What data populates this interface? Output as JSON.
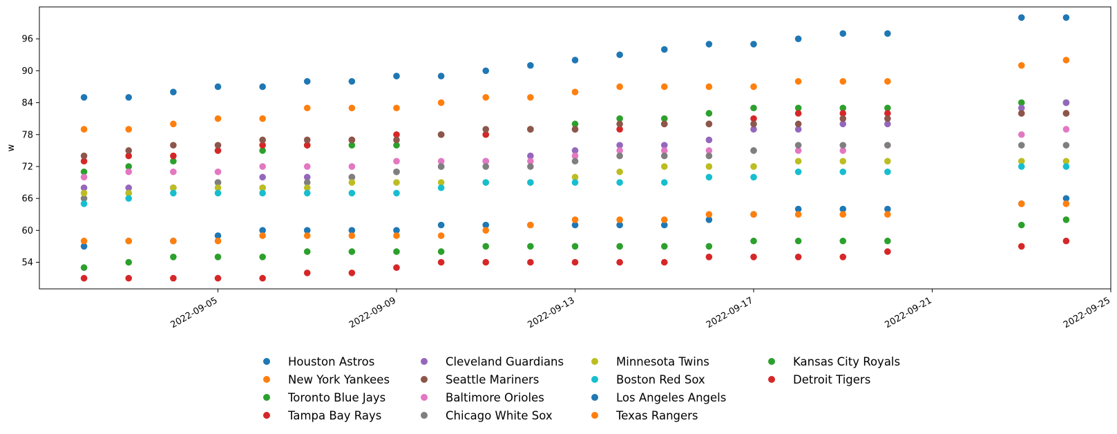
{
  "chart_data": {
    "type": "scatter",
    "title": "",
    "xlabel": "",
    "ylabel": "w",
    "x_axis_type": "date",
    "xlim": [
      "2022-09-01",
      "2022-09-25"
    ],
    "ylim": [
      49,
      102
    ],
    "x_ticks": [
      "2022-09-05",
      "2022-09-09",
      "2022-09-13",
      "2022-09-17",
      "2022-09-21",
      "2022-09-25"
    ],
    "y_ticks": [
      54,
      60,
      66,
      72,
      78,
      84,
      90,
      96
    ],
    "grid": false,
    "legend_position": "bottom-center",
    "legend_columns": 4,
    "x": [
      "2022-09-02",
      "2022-09-03",
      "2022-09-04",
      "2022-09-05",
      "2022-09-06",
      "2022-09-07",
      "2022-09-08",
      "2022-09-09",
      "2022-09-10",
      "2022-09-11",
      "2022-09-12",
      "2022-09-13",
      "2022-09-14",
      "2022-09-15",
      "2022-09-16",
      "2022-09-17",
      "2022-09-18",
      "2022-09-19",
      "2022-09-20",
      "2022-09-23",
      "2022-09-24"
    ],
    "series": [
      {
        "name": "Houston Astros",
        "color": "#1f77b4",
        "values": [
          85,
          85,
          86,
          87,
          87,
          88,
          88,
          89,
          89,
          90,
          91,
          92,
          93,
          94,
          95,
          95,
          96,
          97,
          97,
          100,
          100
        ]
      },
      {
        "name": "New York Yankees",
        "color": "#ff7f0e",
        "values": [
          79,
          79,
          80,
          81,
          81,
          83,
          83,
          83,
          84,
          85,
          85,
          86,
          87,
          87,
          87,
          87,
          88,
          88,
          88,
          91,
          92
        ]
      },
      {
        "name": "Toronto Blue Jays",
        "color": "#2ca02c",
        "values": [
          71,
          72,
          73,
          75,
          75,
          76,
          76,
          76,
          78,
          78,
          79,
          80,
          81,
          81,
          82,
          83,
          83,
          83,
          83,
          84,
          84
        ]
      },
      {
        "name": "Tampa Bay Rays",
        "color": "#d62728",
        "values": [
          73,
          74,
          74,
          75,
          76,
          76,
          77,
          78,
          78,
          78,
          79,
          79,
          79,
          80,
          80,
          81,
          82,
          82,
          82,
          82,
          82
        ]
      },
      {
        "name": "Cleveland Guardians",
        "color": "#9467bd",
        "values": [
          68,
          68,
          68,
          69,
          70,
          70,
          70,
          71,
          72,
          73,
          74,
          75,
          76,
          76,
          77,
          79,
          79,
          80,
          80,
          83,
          84
        ]
      },
      {
        "name": "Seattle Mariners",
        "color": "#8c564b",
        "values": [
          74,
          75,
          76,
          76,
          77,
          77,
          77,
          77,
          78,
          79,
          79,
          79,
          80,
          80,
          80,
          80,
          80,
          81,
          81,
          82,
          82
        ]
      },
      {
        "name": "Baltimore Orioles",
        "color": "#e377c2",
        "values": [
          70,
          71,
          71,
          71,
          72,
          72,
          72,
          73,
          73,
          73,
          73,
          74,
          75,
          75,
          75,
          75,
          75,
          75,
          76,
          78,
          79
        ]
      },
      {
        "name": "Chicago White Sox",
        "color": "#7f7f7f",
        "values": [
          66,
          67,
          68,
          69,
          68,
          69,
          70,
          71,
          72,
          72,
          72,
          73,
          74,
          74,
          74,
          75,
          76,
          76,
          76,
          76,
          76
        ]
      },
      {
        "name": "Minnesota Twins",
        "color": "#bcbd22",
        "values": [
          67,
          67,
          68,
          68,
          68,
          68,
          69,
          69,
          69,
          69,
          69,
          70,
          71,
          72,
          72,
          72,
          73,
          73,
          73,
          73,
          73
        ]
      },
      {
        "name": "Boston Red Sox",
        "color": "#17becf",
        "values": [
          65,
          66,
          67,
          67,
          67,
          67,
          67,
          67,
          68,
          69,
          69,
          69,
          69,
          69,
          70,
          70,
          71,
          71,
          71,
          72,
          72
        ]
      },
      {
        "name": "Los Angeles Angels",
        "color": "#1f77b4",
        "values": [
          57,
          58,
          58,
          59,
          60,
          60,
          60,
          60,
          61,
          61,
          61,
          61,
          61,
          61,
          62,
          63,
          64,
          64,
          64,
          65,
          66
        ]
      },
      {
        "name": "Texas Rangers",
        "color": "#ff7f0e",
        "values": [
          58,
          58,
          58,
          58,
          59,
          59,
          59,
          59,
          59,
          60,
          61,
          62,
          62,
          62,
          63,
          63,
          63,
          63,
          63,
          65,
          65
        ]
      },
      {
        "name": "Kansas City Royals",
        "color": "#2ca02c",
        "values": [
          53,
          54,
          55,
          55,
          55,
          56,
          56,
          56,
          56,
          57,
          57,
          57,
          57,
          57,
          57,
          58,
          58,
          58,
          58,
          61,
          62
        ]
      },
      {
        "name": "Detroit Tigers",
        "color": "#d62728",
        "values": [
          51,
          51,
          51,
          51,
          51,
          52,
          52,
          53,
          54,
          54,
          54,
          54,
          54,
          54,
          55,
          55,
          55,
          55,
          56,
          57,
          58
        ]
      }
    ]
  }
}
